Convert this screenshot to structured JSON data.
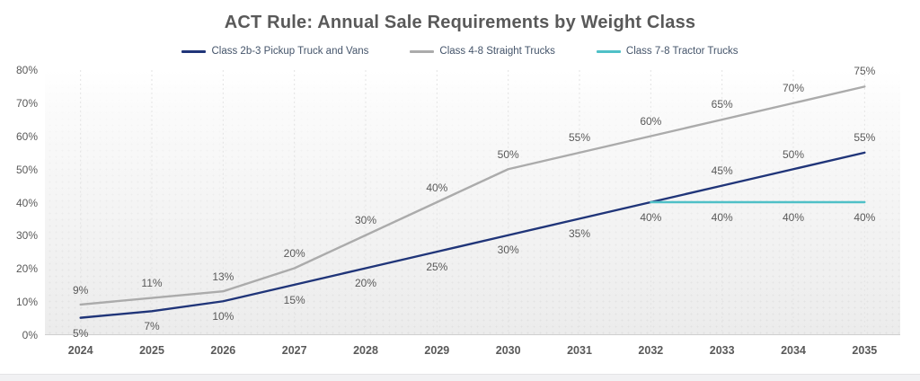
{
  "page": {
    "background_color": "#ffffff",
    "footer_strip_color": "#f1f1f3"
  },
  "chart_data": {
    "type": "line",
    "title": "ACT Rule: Annual Sale Requirements by Weight Class",
    "title_color": "#595959",
    "xlabel": "",
    "ylabel": "",
    "categories": [
      "2024",
      "2025",
      "2026",
      "2027",
      "2028",
      "2029",
      "2030",
      "2031",
      "2032",
      "2033",
      "2034",
      "2035"
    ],
    "ylim": [
      0,
      80
    ],
    "y_tick_step": 10,
    "y_tick_suffix": "%",
    "grid": "vertical-dashed-at-category-centers",
    "grid_color": "#e3e3e3",
    "axis_line_color": "#cfcfcf",
    "axis_label_color": "#595959",
    "data_label_color": "#595959",
    "data_label_suffix": "%",
    "legend_position": "top-center",
    "legend_text_color": "#44546a",
    "series": [
      {
        "name": "Class 2b-3 Pickup Truck and Vans",
        "color": "#203579",
        "values": [
          5,
          7,
          10,
          15,
          20,
          25,
          30,
          35,
          40,
          45,
          50,
          55
        ],
        "label_sides": [
          "below",
          "below",
          "below",
          "below",
          "below",
          "below",
          "below",
          "below",
          "none",
          "above",
          "above",
          "above"
        ]
      },
      {
        "name": "Class 4-8 Straight Trucks",
        "color": "#ababab",
        "values": [
          9,
          11,
          13,
          20,
          30,
          40,
          50,
          55,
          60,
          65,
          70,
          75
        ],
        "label_sides": "above"
      },
      {
        "name": "Class 7-8 Tractor Trucks",
        "color": "#4fc0c7",
        "values": [
          null,
          null,
          null,
          null,
          null,
          null,
          null,
          null,
          40,
          40,
          40,
          40
        ],
        "label_sides": "below"
      }
    ]
  }
}
